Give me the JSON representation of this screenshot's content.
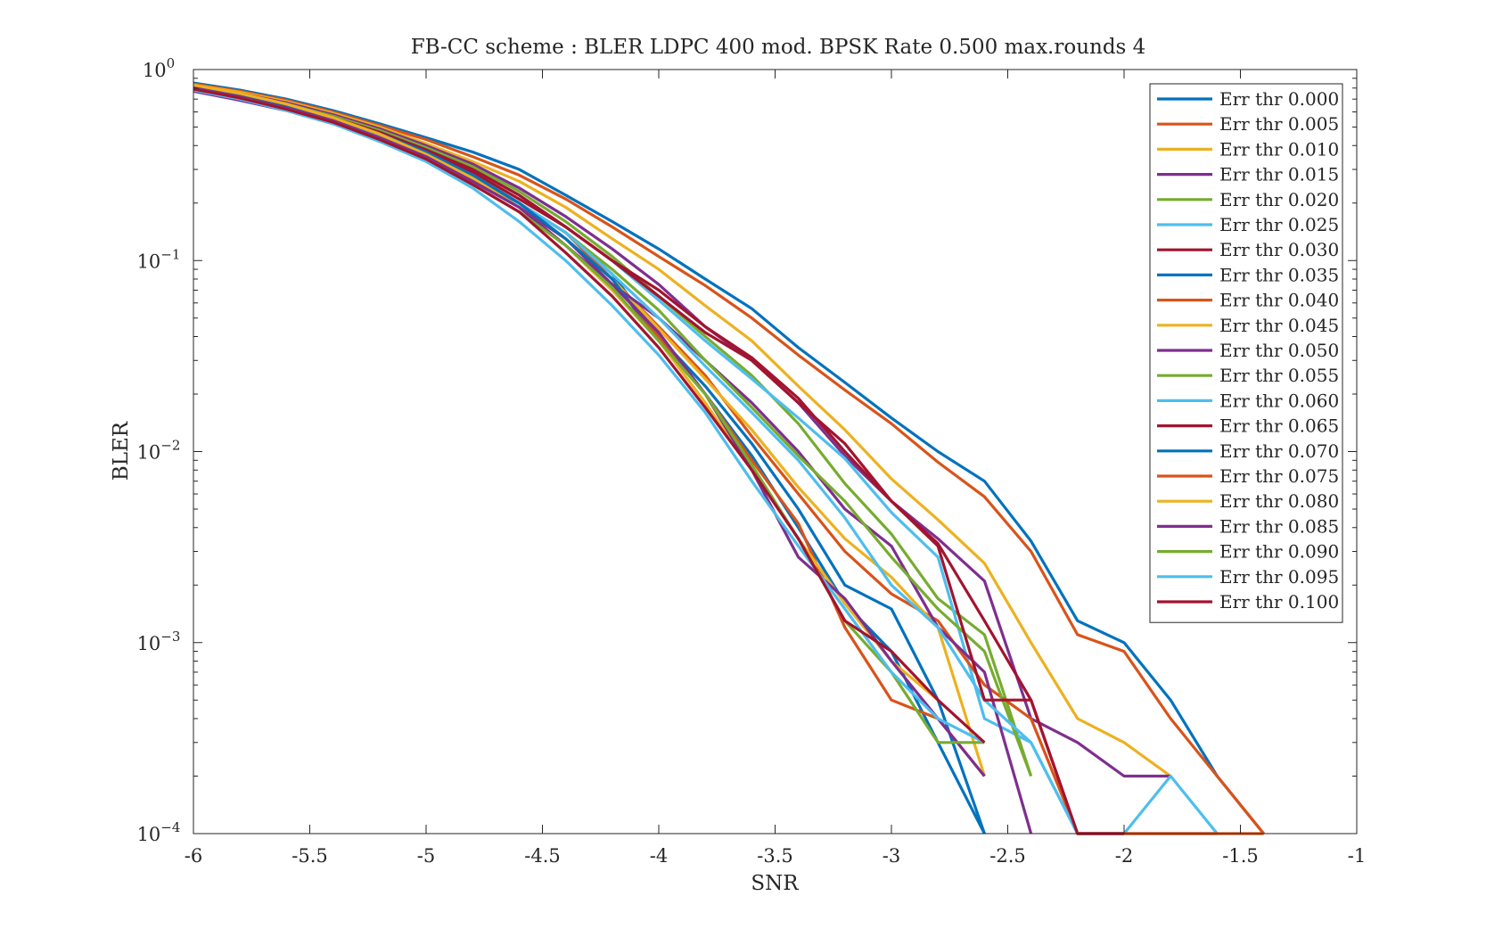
{
  "chart_data": {
    "type": "line",
    "title": "FB-CC scheme : BLER LDPC 400 mod. BPSK Rate 0.500 max.rounds 4",
    "xlabel": "SNR",
    "ylabel": "BLER",
    "xlim": [
      -6,
      -1
    ],
    "ylim": [
      0.0001,
      1
    ],
    "yscale": "log",
    "grid": false,
    "legend_position": "top-right",
    "x_ticks": [
      -6,
      -5.5,
      -5,
      -4.5,
      -4,
      -3.5,
      -3,
      -2.5,
      -2,
      -1.5,
      -1
    ],
    "x_tick_labels": [
      "-6",
      "-5.5",
      "-5",
      "-4.5",
      "-4",
      "-3.5",
      "-3",
      "-2.5",
      "-2",
      "-1.5",
      "-1"
    ],
    "y_ticks": [
      {
        "value": 1,
        "base": "10",
        "exp": "0"
      },
      {
        "value": 0.1,
        "base": "10",
        "exp": "−1"
      },
      {
        "value": 0.01,
        "base": "10",
        "exp": "−2"
      },
      {
        "value": 0.001,
        "base": "10",
        "exp": "−3"
      },
      {
        "value": 0.0001,
        "base": "10",
        "exp": "−4"
      }
    ],
    "x": [
      -6,
      -5.8,
      -5.6,
      -5.4,
      -5.2,
      -5,
      -4.8,
      -4.6,
      -4.4,
      -4.2,
      -4,
      -3.8,
      -3.6,
      -3.4,
      -3.2,
      -3,
      -2.8,
      -2.6,
      -2.4,
      -2.2,
      -2,
      -1.8,
      -1.6,
      -1.4
    ],
    "series": [
      {
        "name": "Err thr 0.000",
        "color": "#0072BD",
        "values": [
          0.85,
          0.78,
          0.7,
          0.61,
          0.52,
          0.44,
          0.37,
          0.3,
          0.22,
          0.16,
          0.115,
          0.08,
          0.056,
          0.035,
          0.023,
          0.015,
          0.01,
          0.007,
          0.0034,
          0.0013,
          0.001,
          0.0005,
          0.0002,
          0.0001
        ]
      },
      {
        "name": "Err thr 0.005",
        "color": "#D95319",
        "values": [
          0.84,
          0.77,
          0.69,
          0.6,
          0.51,
          0.43,
          0.35,
          0.28,
          0.21,
          0.15,
          0.105,
          0.074,
          0.05,
          0.032,
          0.021,
          0.014,
          0.0088,
          0.0058,
          0.003,
          0.0011,
          0.0009,
          0.0004,
          0.0002,
          0.0001
        ]
      },
      {
        "name": "Err thr 0.010",
        "color": "#EDB120",
        "values": [
          0.83,
          0.76,
          0.68,
          0.59,
          0.5,
          0.41,
          0.33,
          0.26,
          0.19,
          0.13,
          0.09,
          0.058,
          0.038,
          0.022,
          0.013,
          0.0072,
          0.0044,
          0.0026,
          0.001,
          0.0004,
          0.0003,
          0.0002,
          null,
          null
        ]
      },
      {
        "name": "Err thr 0.015",
        "color": "#7E2F8E",
        "values": [
          0.82,
          0.75,
          0.67,
          0.58,
          0.49,
          0.4,
          0.32,
          0.24,
          0.17,
          0.115,
          0.075,
          0.045,
          0.03,
          0.018,
          0.0095,
          0.0055,
          0.0035,
          0.0021,
          0.0004,
          0.0003,
          0.0002,
          0.0002,
          null,
          null
        ]
      },
      {
        "name": "Err thr 0.020",
        "color": "#77AC30",
        "values": [
          0.81,
          0.74,
          0.66,
          0.57,
          0.48,
          0.39,
          0.31,
          0.23,
          0.16,
          0.105,
          0.065,
          0.04,
          0.025,
          0.014,
          0.0068,
          0.0037,
          0.0017,
          0.0011,
          0.0002,
          null,
          null,
          null,
          null,
          null
        ]
      },
      {
        "name": "Err thr 0.025",
        "color": "#4DBEEE",
        "values": [
          0.8,
          0.73,
          0.65,
          0.56,
          0.47,
          0.38,
          0.3,
          0.22,
          0.15,
          0.1,
          0.062,
          0.038,
          0.024,
          0.015,
          0.0092,
          0.0048,
          0.0028,
          0.0004,
          0.0003,
          0.0001,
          0.0001,
          0.0002,
          0.0001,
          null
        ]
      },
      {
        "name": "Err thr 0.030",
        "color": "#A2142F",
        "values": [
          0.79,
          0.72,
          0.64,
          0.55,
          0.46,
          0.37,
          0.29,
          0.21,
          0.15,
          0.1,
          0.065,
          0.042,
          0.03,
          0.018,
          0.011,
          0.0055,
          0.0033,
          0.0013,
          0.0005,
          0.0001,
          0.0001,
          0.0001,
          0.0001,
          null
        ]
      },
      {
        "name": "Err thr 0.035",
        "color": "#0072BD",
        "values": [
          0.8,
          0.72,
          0.63,
          0.54,
          0.44,
          0.35,
          0.27,
          0.2,
          0.14,
          0.085,
          0.04,
          0.022,
          0.011,
          0.005,
          0.002,
          0.0015,
          0.0005,
          0.0001,
          null,
          null,
          null,
          null,
          null,
          null
        ]
      },
      {
        "name": "Err thr 0.040",
        "color": "#D95319",
        "values": [
          0.8,
          0.72,
          0.63,
          0.54,
          0.45,
          0.36,
          0.28,
          0.2,
          0.14,
          0.08,
          0.045,
          0.025,
          0.012,
          0.006,
          0.003,
          0.0018,
          0.0013,
          0.0006,
          0.0004,
          0.0001,
          0.0001,
          0.0001,
          0.0001,
          0.0001
        ]
      },
      {
        "name": "Err thr 0.045",
        "color": "#EDB120",
        "values": [
          0.78,
          0.7,
          0.62,
          0.53,
          0.44,
          0.35,
          0.27,
          0.19,
          0.13,
          0.08,
          0.044,
          0.024,
          0.013,
          0.0065,
          0.0035,
          0.0022,
          0.0012,
          0.0002,
          null,
          null,
          null,
          null,
          null,
          null
        ]
      },
      {
        "name": "Err thr 0.050",
        "color": "#7E2F8E",
        "values": [
          0.77,
          0.69,
          0.61,
          0.52,
          0.43,
          0.34,
          0.26,
          0.19,
          0.13,
          0.075,
          0.05,
          0.03,
          0.018,
          0.01,
          0.005,
          0.0032,
          0.0012,
          0.0007,
          0.0001,
          null,
          null,
          null,
          null,
          null
        ]
      },
      {
        "name": "Err thr 0.055",
        "color": "#77AC30",
        "values": [
          0.79,
          0.71,
          0.63,
          0.54,
          0.45,
          0.36,
          0.28,
          0.2,
          0.14,
          0.09,
          0.055,
          0.03,
          0.017,
          0.0095,
          0.0055,
          0.0028,
          0.0015,
          0.0009,
          0.0002,
          null,
          null,
          null,
          null,
          null
        ]
      },
      {
        "name": "Err thr 0.060",
        "color": "#4DBEEE",
        "values": [
          0.79,
          0.71,
          0.63,
          0.54,
          0.45,
          0.36,
          0.28,
          0.2,
          0.14,
          0.085,
          0.05,
          0.028,
          0.016,
          0.009,
          0.0045,
          0.002,
          0.0012,
          0.0005,
          0.0003,
          0.0001,
          null,
          null,
          null,
          null
        ]
      },
      {
        "name": "Err thr 0.065",
        "color": "#A2142F",
        "values": [
          0.81,
          0.73,
          0.65,
          0.56,
          0.47,
          0.38,
          0.3,
          0.22,
          0.15,
          0.1,
          0.07,
          0.045,
          0.031,
          0.019,
          0.01,
          0.0055,
          0.0032,
          0.0005,
          0.0005,
          0.0001,
          0.0001,
          null,
          null,
          null
        ]
      },
      {
        "name": "Err thr 0.070",
        "color": "#0072BD",
        "values": [
          0.82,
          0.74,
          0.65,
          0.56,
          0.46,
          0.37,
          0.28,
          0.2,
          0.13,
          0.08,
          0.038,
          0.02,
          0.0095,
          0.004,
          0.0016,
          0.0009,
          0.0003,
          0.0001,
          null,
          null,
          null,
          null,
          null,
          null
        ]
      },
      {
        "name": "Err thr 0.075",
        "color": "#D95319",
        "values": [
          0.83,
          0.75,
          0.66,
          0.56,
          0.46,
          0.36,
          0.27,
          0.19,
          0.12,
          0.07,
          0.04,
          0.02,
          0.009,
          0.0042,
          0.0012,
          0.0005,
          0.0004,
          0.0002,
          null,
          null,
          null,
          null,
          null,
          null
        ]
      },
      {
        "name": "Err thr 0.080",
        "color": "#EDB120",
        "values": [
          0.83,
          0.75,
          0.66,
          0.56,
          0.46,
          0.36,
          0.27,
          0.19,
          0.12,
          0.07,
          0.038,
          0.018,
          0.008,
          0.0035,
          0.0016,
          0.0008,
          0.0005,
          null,
          null,
          null,
          null,
          null,
          null,
          null
        ]
      },
      {
        "name": "Err thr 0.085",
        "color": "#7E2F8E",
        "values": [
          0.8,
          0.72,
          0.63,
          0.54,
          0.44,
          0.35,
          0.26,
          0.19,
          0.12,
          0.075,
          0.042,
          0.02,
          0.008,
          0.0028,
          0.0017,
          0.0008,
          0.0004,
          0.0002,
          null,
          null,
          null,
          null,
          null,
          null
        ]
      },
      {
        "name": "Err thr 0.090",
        "color": "#77AC30",
        "values": [
          0.79,
          0.71,
          0.62,
          0.53,
          0.43,
          0.34,
          0.25,
          0.18,
          0.12,
          0.072,
          0.038,
          0.02,
          0.0085,
          0.0035,
          0.0013,
          0.0007,
          0.0003,
          0.0003,
          null,
          null,
          null,
          null,
          null,
          null
        ]
      },
      {
        "name": "Err thr 0.095",
        "color": "#4DBEEE",
        "values": [
          0.78,
          0.7,
          0.61,
          0.52,
          0.42,
          0.33,
          0.24,
          0.16,
          0.1,
          0.058,
          0.032,
          0.016,
          0.007,
          0.0032,
          0.0015,
          0.0007,
          0.0004,
          0.0003,
          null,
          null,
          null,
          null,
          null,
          null
        ]
      },
      {
        "name": "Err thr 0.100",
        "color": "#A2142F",
        "values": [
          0.79,
          0.71,
          0.62,
          0.53,
          0.43,
          0.34,
          0.25,
          0.18,
          0.11,
          0.065,
          0.035,
          0.017,
          0.008,
          0.0035,
          0.0013,
          0.0009,
          0.0005,
          0.0003,
          null,
          null,
          null,
          null,
          null,
          null
        ]
      }
    ]
  }
}
